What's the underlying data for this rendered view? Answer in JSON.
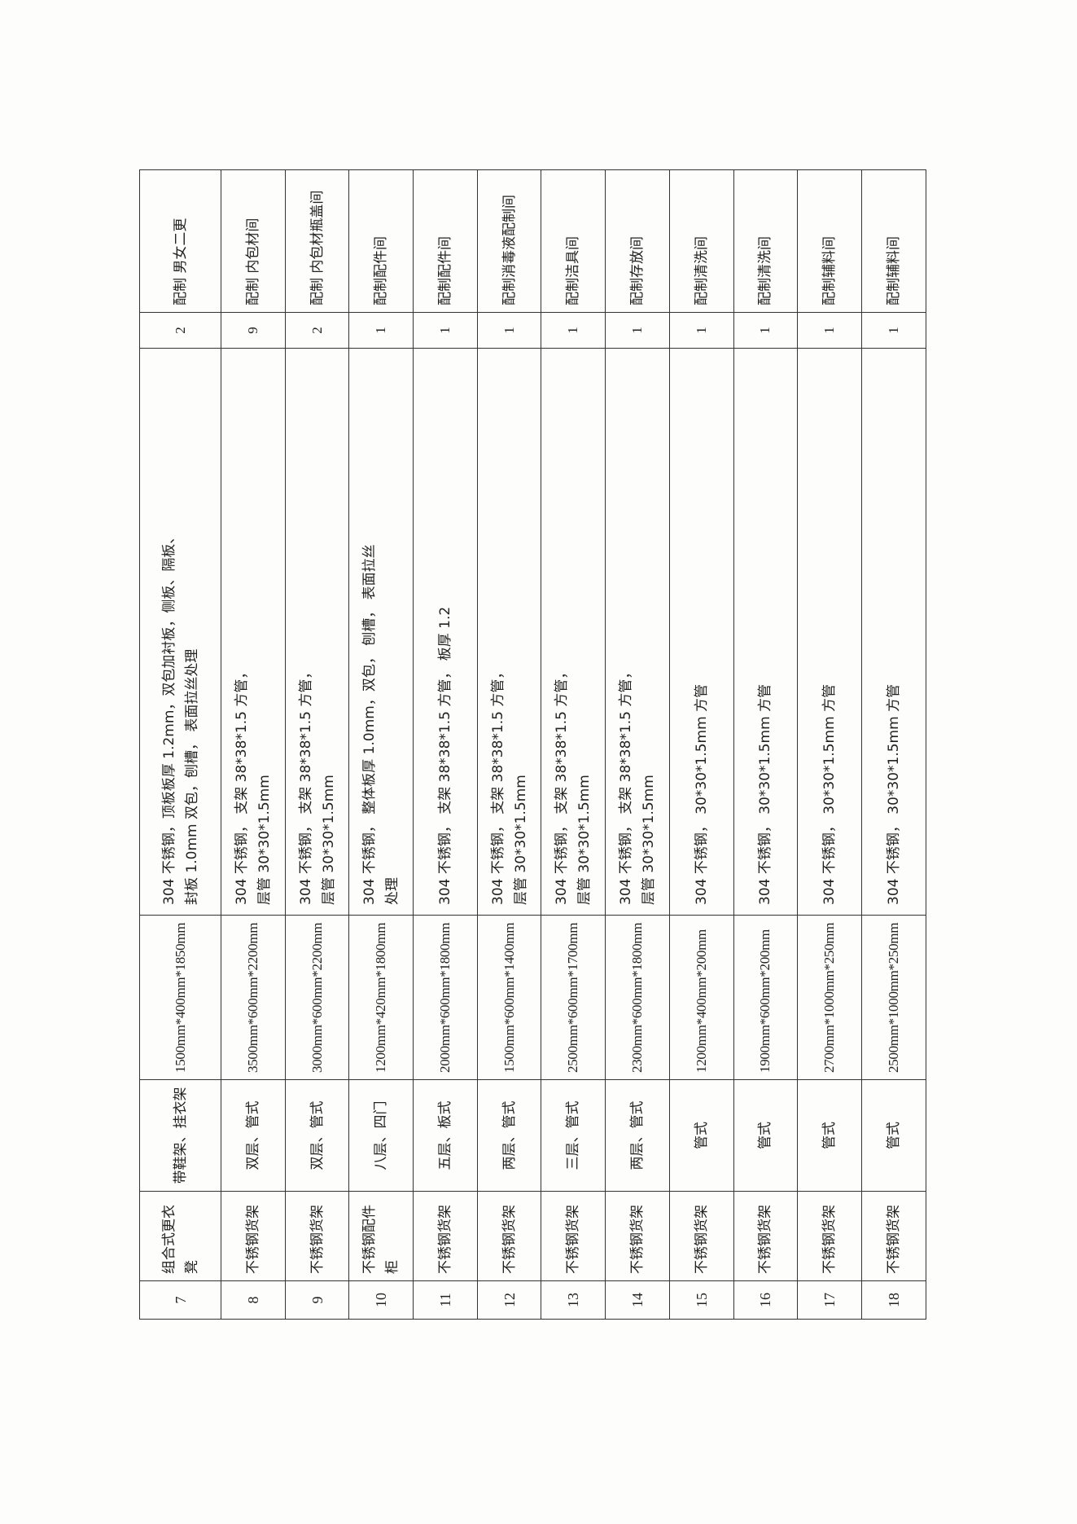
{
  "table": {
    "rows": [
      {
        "no": "7",
        "name": "组合式更衣凳",
        "type": "带鞋架、挂衣架",
        "dim": "1500mm*400mm*1850mm",
        "material": [
          "304 不锈钢，顶板板厚 1.2mm，双包加衬板，侧板、隔板、",
          "封板 1.0mm 双包，刨槽， 表面拉丝处理"
        ],
        "qty": "2",
        "location": "配制  男女二更"
      },
      {
        "no": "8",
        "name": "不锈钢货架",
        "type": "双层、管式",
        "dim": "3500mm*600mm*2200mm",
        "material": [
          "304 不锈钢， 支架 38*38*1.5 方管，",
          "层管 30*30*1.5mm"
        ],
        "qty": "9",
        "location": "配制  内包材间"
      },
      {
        "no": "9",
        "name": "不锈钢货架",
        "type": "双层、管式",
        "dim": "3000mm*600mm*2200mm",
        "material": [
          "304 不锈钢， 支架 38*38*1.5 方管，",
          "层管 30*30*1.5mm"
        ],
        "qty": "2",
        "location": "配制  内包材瓶盖间"
      },
      {
        "no": "10",
        "name": "不锈钢配件柜",
        "type": "八层、四门",
        "dim": "1200mm*420mm*1800mm",
        "material": [
          "304 不锈钢， 整体板厚 1.0mm，双包， 刨槽， 表面拉丝",
          "处理"
        ],
        "qty": "1",
        "location": "配制配件间"
      },
      {
        "no": "11",
        "name": "不锈钢货架",
        "type": "五层、板式",
        "dim": "2000mm*600mm*1800mm",
        "material": [
          "304 不锈钢， 支架 38*38*1.5 方管， 板厚 1.2"
        ],
        "qty": "1",
        "location": "配制配件间"
      },
      {
        "no": "12",
        "name": "不锈钢货架",
        "type": "两层、管式",
        "dim": "1500mm*600mm*1400mm",
        "material": [
          "304 不锈钢， 支架 38*38*1.5 方管，",
          "层管 30*30*1.5mm"
        ],
        "qty": "1",
        "location": "配制消毒液配制间"
      },
      {
        "no": "13",
        "name": "不锈钢货架",
        "type": "三层、管式",
        "dim": "2500mm*600mm*1700mm",
        "material": [
          "304 不锈钢， 支架 38*38*1.5 方管，",
          "层管 30*30*1.5mm"
        ],
        "qty": "1",
        "location": "配制洁具间"
      },
      {
        "no": "14",
        "name": "不锈钢货架",
        "type": "两层、管式",
        "dim": "2300mm*600mm*1800mm",
        "material": [
          "304 不锈钢， 支架 38*38*1.5 方管，",
          "层管 30*30*1.5mm"
        ],
        "qty": "1",
        "location": "配制存放间"
      },
      {
        "no": "15",
        "name": "不锈钢货架",
        "type": "管式",
        "dim": "1200mm*400mm*200mm",
        "material": [
          "304 不锈钢， 30*30*1.5mm 方管"
        ],
        "qty": "1",
        "location": "配制清洗间"
      },
      {
        "no": "16",
        "name": "不锈钢货架",
        "type": "管式",
        "dim": "1900mm*600mm*200mm",
        "material": [
          "304 不锈钢， 30*30*1.5mm 方管"
        ],
        "qty": "1",
        "location": "配制清洗间"
      },
      {
        "no": "17",
        "name": "不锈钢货架",
        "type": "管式",
        "dim": "2700mm*1000mm*250mm",
        "material": [
          "304 不锈钢， 30*30*1.5mm 方管"
        ],
        "qty": "1",
        "location": "配制辅料间"
      },
      {
        "no": "18",
        "name": "不锈钢货架",
        "type": "管式",
        "dim": "2500mm*1000mm*250mm",
        "material": [
          "304 不锈钢， 30*30*1.5mm 方管"
        ],
        "qty": "1",
        "location": "配制辅料间"
      }
    ]
  }
}
